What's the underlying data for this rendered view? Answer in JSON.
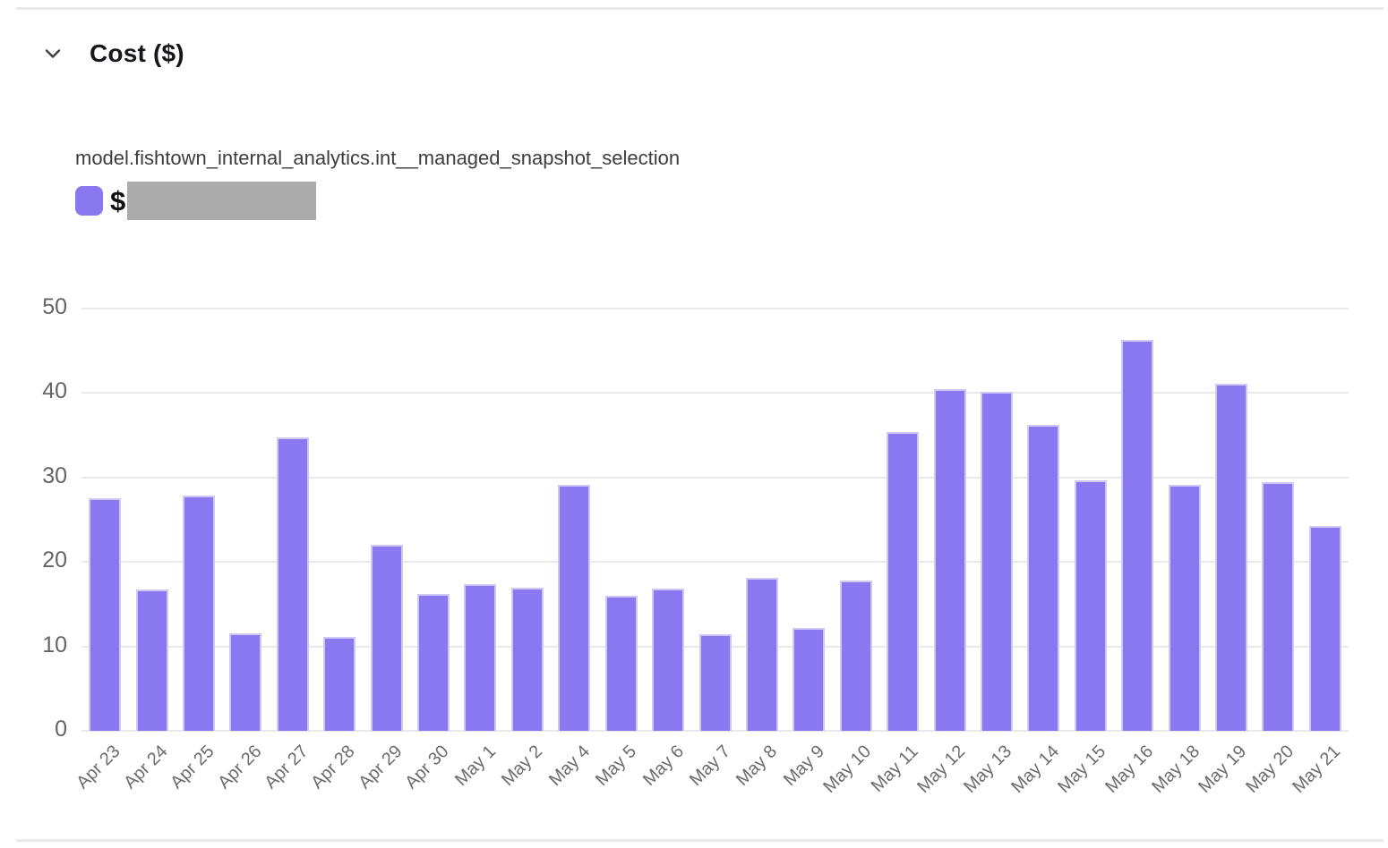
{
  "header": {
    "title": "Cost ($)",
    "collapse_icon": "chevron-down"
  },
  "legend": {
    "series_name": "model.fishtown_internal_analytics.int__managed_snapshot_selection",
    "value_prefix": "$",
    "value_redacted": true,
    "swatch_color": "#8978f0",
    "redacted_color": "#ababab"
  },
  "colors": {
    "bar_fill": "#8978f0",
    "bar_border": "#cfc8f5",
    "gridline": "#e9e9eb",
    "y_axis_label": "#646469",
    "x_axis_label": "#6d6a70",
    "divider": "#e9e9e9",
    "title_text": "#16161d"
  },
  "chart_data": {
    "type": "bar",
    "title": "Cost ($)",
    "series": [
      {
        "name": "model.fishtown_internal_analytics.int__managed_snapshot_selection",
        "values": [
          27.5,
          16.7,
          27.9,
          11.5,
          34.7,
          11.1,
          22.0,
          16.2,
          17.4,
          17.0,
          29.1,
          16.0,
          16.8,
          11.4,
          18.1,
          12.2,
          17.8,
          35.4,
          40.5,
          40.2,
          36.2,
          29.7,
          46.3,
          29.1,
          41.1,
          29.5,
          24.3
        ]
      }
    ],
    "categories": [
      "Apr 23",
      "Apr 24",
      "Apr 25",
      "Apr 26",
      "Apr 27",
      "Apr 28",
      "Apr 29",
      "Apr 30",
      "May 1",
      "May 2",
      "May 4",
      "May 5",
      "May 6",
      "May 7",
      "May 8",
      "May 9",
      "May 10",
      "May 11",
      "May 12",
      "May 13",
      "May 14",
      "May 15",
      "May 16",
      "May 18",
      "May 19",
      "May 20",
      "May 21"
    ],
    "xlabel": "",
    "ylabel": "",
    "ylim": [
      0,
      50
    ],
    "yticks": [
      0,
      10,
      20,
      30,
      40,
      50
    ],
    "grid": true,
    "legend_position": "top-left",
    "bar_color": "#8978f0"
  }
}
